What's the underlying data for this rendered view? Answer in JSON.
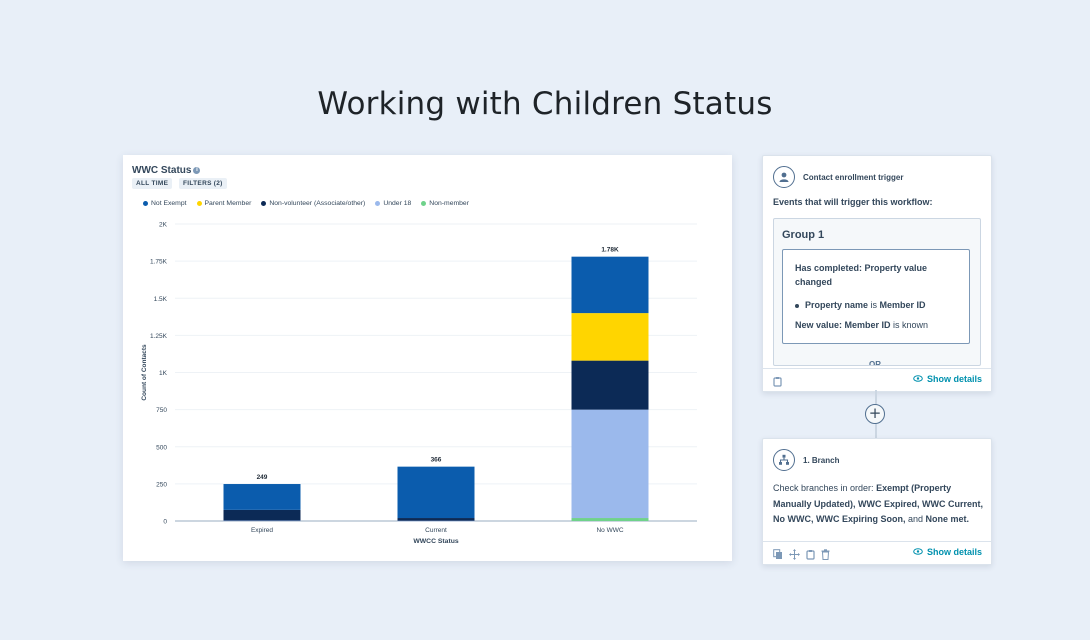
{
  "page": {
    "title": "Working with Children Status"
  },
  "report": {
    "title": "WWC Status",
    "chips": {
      "time": "ALL TIME",
      "filters": "FILTERS (2)"
    },
    "info_icon": "i"
  },
  "colors": {
    "not_exempt": "#0b5cad",
    "parent_member": "#ffd500",
    "non_volunteer": "#0c2a56",
    "under_18": "#9bb9ec",
    "non_member": "#6fd28b",
    "accent": "#0091ae"
  },
  "chart_data": {
    "type": "bar",
    "stacked": true,
    "title": "WWC Status",
    "xlabel": "WWCC Status",
    "ylabel": "Count of Contacts",
    "ylim": [
      0,
      2000
    ],
    "yticks": [
      0,
      250,
      500,
      750,
      1000,
      1250,
      1500,
      1750,
      2000
    ],
    "ytick_labels": [
      "0",
      "250",
      "500",
      "750",
      "1K",
      "1.25K",
      "1.5K",
      "1.75K",
      "2K"
    ],
    "categories": [
      "Expired",
      "Current",
      "No WWC"
    ],
    "totals": [
      249,
      366,
      1780
    ],
    "total_labels": [
      "249",
      "366",
      "1.78K"
    ],
    "series": [
      {
        "name": "Not Exempt",
        "values": [
          174,
          346,
          380
        ]
      },
      {
        "name": "Parent Member",
        "values": [
          0,
          0,
          320
        ]
      },
      {
        "name": "Non-volunteer (Associate/other)",
        "values": [
          72,
          18,
          330
        ]
      },
      {
        "name": "Under 18",
        "values": [
          3,
          2,
          730
        ]
      },
      {
        "name": "Non-member",
        "values": [
          0,
          0,
          20
        ]
      }
    ],
    "legend_position": "top-left"
  },
  "trigger": {
    "header": "Contact enrollment trigger",
    "events_label": "Events that will trigger this workflow:",
    "group_title": "Group 1",
    "condition_title": "Has completed: Property value changed",
    "line1": {
      "prefix": "Property name",
      "mid": " is ",
      "value": "Member ID"
    },
    "line2": {
      "prefix": "New value: Member ID",
      "suffix": " is known"
    },
    "or_peek": "OR",
    "show_details": "Show details"
  },
  "branch": {
    "header": "1. Branch",
    "body_prefix": "Check branches in order: ",
    "body_bold": "Exempt (Property Manually Updated), WWC Expired, WWC Current, No WWC, WWC Expiring Soon,",
    "body_and": " and ",
    "body_last": "None met.",
    "show_details": "Show details"
  },
  "add_step": "+"
}
